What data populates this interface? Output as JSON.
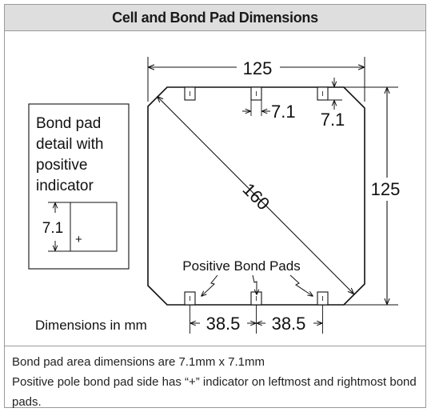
{
  "title": "Cell and Bond Pad Dimensions",
  "diagram": {
    "cell_width_label": "125",
    "cell_height_label": "125",
    "diagonal_label": "160",
    "pad_width_label": "7.1",
    "pad_height_label": "7.1",
    "bottom_spacing_left": "38.5",
    "bottom_spacing_right": "38.5",
    "positive_pads_label": "Positive Bond Pads",
    "units_label": "Dimensions in mm",
    "detail": {
      "title_line1": "Bond pad",
      "title_line2": "detail with",
      "title_line3": "positive",
      "title_line4": "indicator",
      "dimension_label": "7.1",
      "plus_symbol": "+"
    }
  },
  "caption": {
    "line1": "Bond pad area dimensions are 7.1mm x 7.1mm",
    "line2": "Positive pole bond pad side has “+” indicator on leftmost and rightmost bond pads."
  }
}
